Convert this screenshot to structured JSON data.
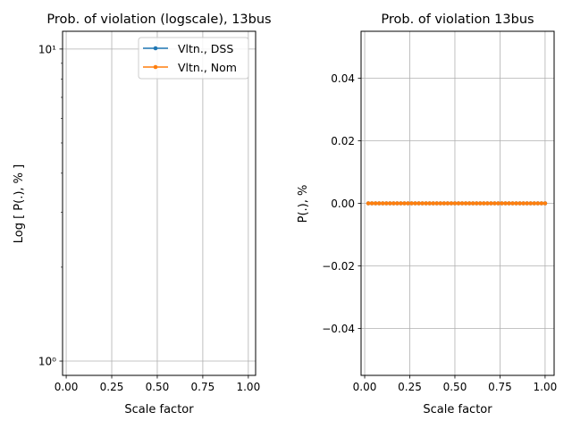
{
  "chart_data": [
    {
      "type": "line",
      "title": "Prob. of violation (logscale), 13bus",
      "xlabel": "Scale factor",
      "ylabel": "Log [ P(.), % ]",
      "yscale": "log",
      "xlim": [
        -0.02,
        1.04
      ],
      "ylim": [
        0.9,
        11.4
      ],
      "xticks": [
        0.0,
        0.25,
        0.5,
        0.75,
        1.0
      ],
      "xtick_labels": [
        "0.00",
        "0.25",
        "0.50",
        "0.75",
        "1.00"
      ],
      "yticks": [
        1,
        10
      ],
      "ytick_labels": [
        "10⁰",
        "10¹"
      ],
      "grid": true,
      "legend": "upper right",
      "series": [
        {
          "name": "Vltn., DSS",
          "color": "#1f77b4",
          "x": [],
          "values": []
        },
        {
          "name": "Vltn., Nom",
          "color": "#ff7f0e",
          "x": [],
          "values": []
        }
      ]
    },
    {
      "type": "line",
      "title": "Prob. of violation 13bus",
      "xlabel": "Scale factor",
      "ylabel": "P(.), %",
      "xlim": [
        -0.02,
        1.05
      ],
      "ylim": [
        -0.055,
        0.055
      ],
      "xticks": [
        0.0,
        0.25,
        0.5,
        0.75,
        1.0
      ],
      "xtick_labels": [
        "0.00",
        "0.25",
        "0.50",
        "0.75",
        "1.00"
      ],
      "yticks": [
        -0.04,
        -0.02,
        0.0,
        0.02,
        0.04
      ],
      "ytick_labels": [
        "−0.04",
        "−0.02",
        "0.00",
        "0.02",
        "0.04"
      ],
      "grid": true,
      "series": [
        {
          "color": "#1f77b4",
          "x": [
            0.02,
            0.04,
            0.06,
            0.08,
            0.1,
            0.12,
            0.14,
            0.16,
            0.18,
            0.2,
            0.22,
            0.24,
            0.26,
            0.28,
            0.3,
            0.32,
            0.34,
            0.36,
            0.38,
            0.4,
            0.42,
            0.44,
            0.46,
            0.48,
            0.5,
            0.52,
            0.54,
            0.56,
            0.58,
            0.6,
            0.62,
            0.64,
            0.66,
            0.68,
            0.7,
            0.72,
            0.74,
            0.76,
            0.78,
            0.8,
            0.82,
            0.84,
            0.86,
            0.88,
            0.9,
            0.92,
            0.94,
            0.96,
            0.98,
            1.0
          ],
          "values": [
            0,
            0,
            0,
            0,
            0,
            0,
            0,
            0,
            0,
            0,
            0,
            0,
            0,
            0,
            0,
            0,
            0,
            0,
            0,
            0,
            0,
            0,
            0,
            0,
            0,
            0,
            0,
            0,
            0,
            0,
            0,
            0,
            0,
            0,
            0,
            0,
            0,
            0,
            0,
            0,
            0,
            0,
            0,
            0,
            0,
            0,
            0,
            0,
            0,
            0
          ]
        },
        {
          "color": "#ff7f0e",
          "x": [
            0.02,
            0.04,
            0.06,
            0.08,
            0.1,
            0.12,
            0.14,
            0.16,
            0.18,
            0.2,
            0.22,
            0.24,
            0.26,
            0.28,
            0.3,
            0.32,
            0.34,
            0.36,
            0.38,
            0.4,
            0.42,
            0.44,
            0.46,
            0.48,
            0.5,
            0.52,
            0.54,
            0.56,
            0.58,
            0.6,
            0.62,
            0.64,
            0.66,
            0.68,
            0.7,
            0.72,
            0.74,
            0.76,
            0.78,
            0.8,
            0.82,
            0.84,
            0.86,
            0.88,
            0.9,
            0.92,
            0.94,
            0.96,
            0.98,
            1.0
          ],
          "values": [
            0,
            0,
            0,
            0,
            0,
            0,
            0,
            0,
            0,
            0,
            0,
            0,
            0,
            0,
            0,
            0,
            0,
            0,
            0,
            0,
            0,
            0,
            0,
            0,
            0,
            0,
            0,
            0,
            0,
            0,
            0,
            0,
            0,
            0,
            0,
            0,
            0,
            0,
            0,
            0,
            0,
            0,
            0,
            0,
            0,
            0,
            0,
            0,
            0,
            0
          ]
        }
      ]
    }
  ]
}
